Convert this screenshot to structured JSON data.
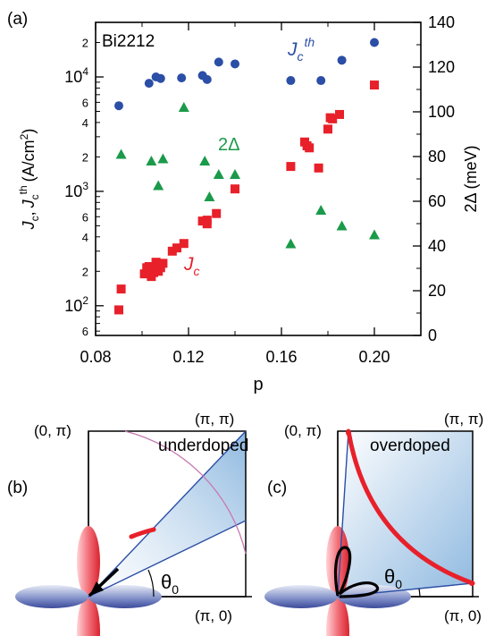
{
  "figure": {
    "panel_a_label": "(a)",
    "panel_b_label": "(b)",
    "panel_c_label": "(c)",
    "material_label": "Bi2212",
    "annotations": {
      "jcth_main": "J",
      "jcth_sub": "c",
      "jcth_sup": "th",
      "gap_label": "2Δ",
      "jc_main": "J",
      "jc_sub": "c"
    },
    "left_axis_label": {
      "j1": "J",
      "s1": "c",
      "comma": ",",
      "j2": "J",
      "s2": "c",
      "sup2": "th",
      "unit_open": "(A/cm",
      "unit_sup": "2",
      "unit_close": ")"
    },
    "right_axis_label": "2Δ (meV)",
    "x_axis_label": "p",
    "panel_b": {
      "corner_top_left": "(0, π)",
      "corner_top_right": "(π, π)",
      "corner_bottom_right": "(π, 0)",
      "region_label": "underdoped",
      "angle_label_main": "θ",
      "angle_label_sub": "0"
    },
    "panel_c": {
      "corner_top_left": "(0, π)",
      "corner_top_right": "(π, π)",
      "corner_bottom_right": "(π, 0)",
      "region_label": "overdoped",
      "angle_label_main": "θ",
      "angle_label_sub": "0"
    }
  },
  "colors": {
    "jc": "#e8202a",
    "jc_th": "#2b4ea6",
    "gap": "#1a9a4a",
    "wedge_fill": "#a9cbe8",
    "arc": "#c878b0",
    "fermi": "#e8202a"
  },
  "chart_data": {
    "type": "scatter",
    "xlim": [
      0.08,
      0.22
    ],
    "x_ticks": [
      "0.08",
      "0.12",
      "0.16",
      "0.20"
    ],
    "y_left_scale": "log",
    "y_left_lim": [
      55,
      30000
    ],
    "y_left_major_ticks": [
      "10^2",
      "10^3",
      "10^4"
    ],
    "y_left_minor_labels": [
      "6",
      "2",
      "4",
      "6",
      "2",
      "4",
      "6",
      "2",
      "4",
      "6",
      "2"
    ],
    "y_right_lim": [
      0,
      140
    ],
    "y_right_ticks": [
      "0",
      "20",
      "40",
      "60",
      "80",
      "100",
      "120",
      "140"
    ],
    "grid": false,
    "series": [
      {
        "name": "Jc",
        "axis": "left",
        "marker": "square",
        "color": "#e8202a",
        "x": [
          0.09,
          0.091,
          0.101,
          0.102,
          0.103,
          0.104,
          0.105,
          0.106,
          0.106,
          0.107,
          0.107,
          0.108,
          0.109,
          0.113,
          0.115,
          0.118,
          0.126,
          0.128,
          0.128,
          0.132,
          0.14,
          0.164,
          0.17,
          0.171,
          0.172,
          0.176,
          0.18,
          0.181,
          0.182,
          0.185,
          0.2
        ],
        "y": [
          92,
          140,
          190,
          215,
          220,
          180,
          195,
          210,
          240,
          200,
          230,
          215,
          235,
          300,
          320,
          350,
          550,
          520,
          560,
          640,
          1050,
          1650,
          2700,
          2500,
          2400,
          1600,
          3500,
          4400,
          4300,
          4700,
          8500
        ]
      },
      {
        "name": "Jc th",
        "axis": "left",
        "marker": "circle",
        "color": "#2b4ea6",
        "x": [
          0.09,
          0.103,
          0.106,
          0.108,
          0.117,
          0.126,
          0.128,
          0.133,
          0.14,
          0.164,
          0.177,
          0.186,
          0.2
        ],
        "y": [
          5600,
          8800,
          10000,
          9700,
          9800,
          10300,
          9500,
          13500,
          13000,
          9300,
          9300,
          14000,
          20000
        ]
      },
      {
        "name": "2Δ",
        "axis": "right",
        "marker": "triangle",
        "color": "#1a9a4a",
        "x": [
          0.091,
          0.104,
          0.107,
          0.109,
          0.118,
          0.127,
          0.129,
          0.133,
          0.14,
          0.164,
          0.177,
          0.186,
          0.2
        ],
        "y": [
          81,
          78,
          67,
          79,
          102,
          78,
          62,
          72,
          72,
          41,
          56,
          49,
          45
        ]
      }
    ]
  }
}
